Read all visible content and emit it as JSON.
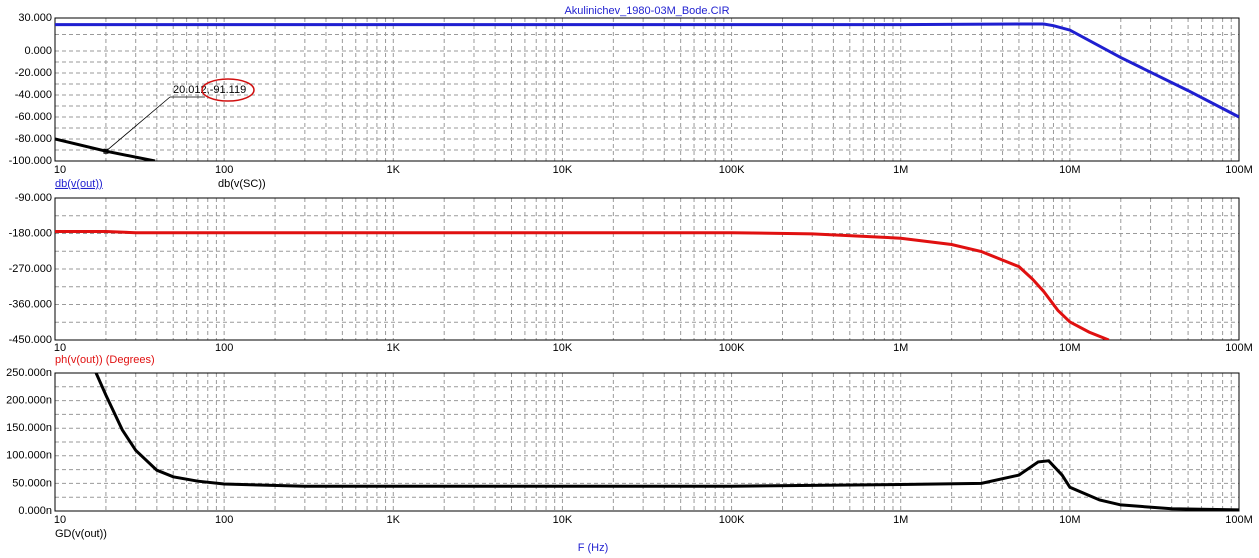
{
  "chart_data": [
    {
      "type": "line",
      "title": "Akulinichev_1980-03M_Bode.CIR",
      "log_x": true,
      "grid": true,
      "xlim": [
        10,
        100000000
      ],
      "xticks": [
        10,
        100,
        {
          "value": 1000,
          "label": "1K"
        },
        {
          "value": 10000,
          "label": "10K"
        },
        {
          "value": 100000,
          "label": "100K"
        },
        {
          "value": 1000000,
          "label": "1M"
        },
        {
          "value": 10000000,
          "label": "10M"
        },
        {
          "value": 100000000,
          "label": "100M"
        }
      ],
      "ylim": [
        -100,
        30
      ],
      "yticks": [
        {
          "value": 30,
          "label": "30.000"
        },
        {
          "value": 0,
          "label": "0.000"
        },
        {
          "value": -20,
          "label": "-20.000"
        },
        {
          "value": -40,
          "label": "-40.000"
        },
        {
          "value": -60,
          "label": "-60.000"
        },
        {
          "value": -80,
          "label": "-80.000"
        },
        {
          "value": -100,
          "label": "-100.000"
        }
      ],
      "annotation": "20.012,-91.119",
      "series": [
        {
          "name": "db(v(out))",
          "color": "#1f1fd0",
          "x": [
            10,
            1000000,
            5000000,
            7000000,
            8000000,
            10000000,
            20000000,
            50000000,
            100000000
          ],
          "values": [
            24,
            24,
            24.5,
            24.5,
            23,
            19,
            -6,
            -36,
            -60
          ]
        },
        {
          "name": "db(v(SC))",
          "color": "#000000",
          "x": [
            10,
            20.012,
            39
          ],
          "values": [
            -80,
            -91.119,
            -100
          ]
        }
      ]
    },
    {
      "type": "line",
      "log_x": true,
      "grid": true,
      "xlim": [
        10,
        100000000
      ],
      "xticks": [
        10,
        100,
        {
          "value": 1000,
          "label": "1K"
        },
        {
          "value": 10000,
          "label": "10K"
        },
        {
          "value": 100000,
          "label": "100K"
        },
        {
          "value": 1000000,
          "label": "1M"
        },
        {
          "value": 10000000,
          "label": "10M"
        },
        {
          "value": 100000000,
          "label": "100M"
        }
      ],
      "ylim": [
        -450,
        -90
      ],
      "yticks": [
        {
          "value": -90,
          "label": "-90.000"
        },
        {
          "value": -180,
          "label": "-180.000"
        },
        {
          "value": -270,
          "label": "-270.000"
        },
        {
          "value": -360,
          "label": "-360.000"
        },
        {
          "value": -450,
          "label": "-450.000"
        }
      ],
      "series": [
        {
          "name": "ph(v(out)) (Degrees)",
          "color": "#e01010",
          "x": [
            10,
            20,
            30,
            100000,
            300000,
            1000000,
            2000000,
            3000000,
            5000000,
            6000000,
            7000000,
            8500000,
            10000000,
            13000000,
            17000000
          ],
          "values": [
            -175,
            -175,
            -178,
            -178,
            -181,
            -192,
            -208,
            -226,
            -264,
            -295,
            -327,
            -375,
            -404,
            -430,
            -450
          ]
        }
      ]
    },
    {
      "type": "line",
      "log_x": true,
      "grid": true,
      "xlabel": "F (Hz)",
      "xlim": [
        10,
        100000000
      ],
      "xticks": [
        10,
        100,
        {
          "value": 1000,
          "label": "1K"
        },
        {
          "value": 10000,
          "label": "10K"
        },
        {
          "value": 100000,
          "label": "100K"
        },
        {
          "value": 1000000,
          "label": "1M"
        },
        {
          "value": 10000000,
          "label": "10M"
        },
        {
          "value": 100000000,
          "label": "100M"
        }
      ],
      "ylim": [
        0,
        250
      ],
      "yticks": [
        {
          "value": 250,
          "label": "250.000n"
        },
        {
          "value": 200,
          "label": "200.000n"
        },
        {
          "value": 150,
          "label": "150.000n"
        },
        {
          "value": 100,
          "label": "100.000n"
        },
        {
          "value": 50,
          "label": "50.000n"
        },
        {
          "value": 0,
          "label": "0.000n"
        }
      ],
      "series": [
        {
          "name": "GD(v(out))",
          "color": "#000000",
          "x": [
            17.5,
            20,
            25,
            30,
            40,
            50,
            70,
            100,
            300,
            100000,
            1000000,
            3000000,
            5000000,
            6500000,
            7500000,
            9000000,
            10000000,
            15000000,
            20000000,
            40000000,
            100000000
          ],
          "values": [
            250,
            210,
            147,
            110,
            74,
            62,
            54,
            49,
            45,
            45,
            48,
            50,
            65,
            89,
            91,
            65,
            43,
            20,
            11,
            4,
            2
          ]
        }
      ]
    }
  ]
}
